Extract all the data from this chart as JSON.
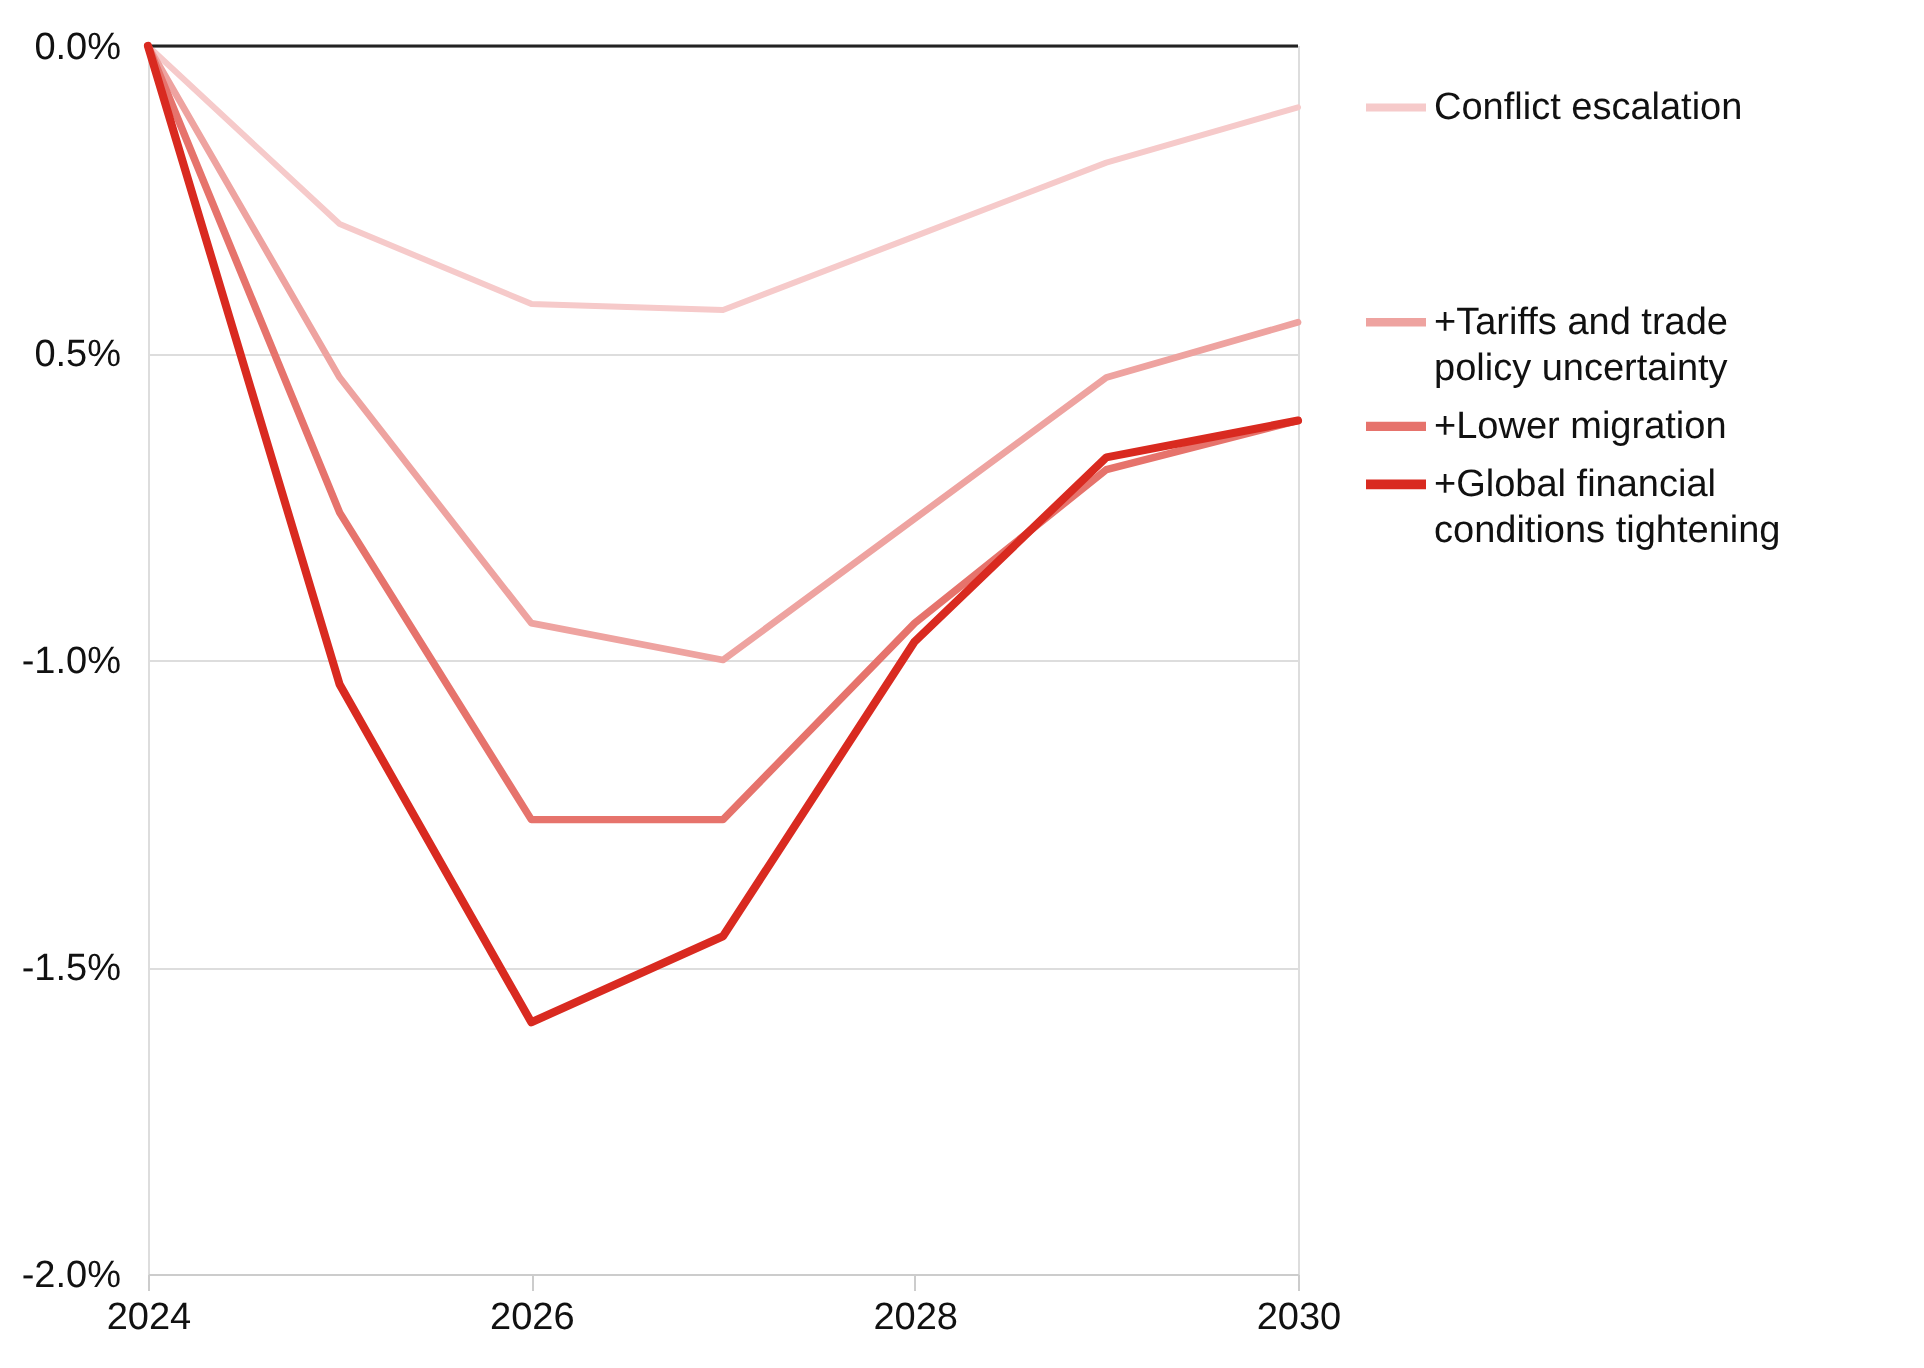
{
  "chart_data": {
    "type": "line",
    "x": [
      2024,
      2025,
      2026,
      2027,
      2028,
      2029,
      2030
    ],
    "series": [
      {
        "name": "Conflict escalation",
        "color": "#f6caca",
        "values": [
          0,
          -0.29,
          -0.42,
          -0.43,
          -0.31,
          -0.19,
          -0.1
        ]
      },
      {
        "name": "+Tariffs and trade policy uncertainty",
        "color": "#eea3a0",
        "values": [
          0,
          -0.54,
          -0.94,
          -1.0,
          -0.77,
          -0.54,
          -0.45
        ]
      },
      {
        "name": "+Lower migration",
        "color": "#e6736c",
        "values": [
          0,
          -0.76,
          -1.26,
          -1.26,
          -0.94,
          -0.69,
          -0.61
        ]
      },
      {
        "name": "+Global financial conditions tightening",
        "color": "#d92a20",
        "values": [
          0,
          -1.04,
          -1.59,
          -1.45,
          -0.97,
          -0.67,
          -0.61
        ]
      }
    ],
    "xlim": [
      2024,
      2030
    ],
    "xticks": [
      2024,
      2026,
      2028,
      2030
    ],
    "ylim": [
      -2.0,
      0.0
    ],
    "yticks": [
      {
        "value": 0,
        "label": "0.0%"
      },
      {
        "value": -0.5,
        "label": "0.5%"
      },
      {
        "value": -1.0,
        "label": "-1.0%"
      },
      {
        "value": -1.5,
        "label": "-1.5%"
      },
      {
        "value": -2.0,
        "label": "-2.0%"
      }
    ],
    "ref_lines": [
      {
        "axis": "y",
        "value": 0,
        "color": "#222222"
      }
    ],
    "grid": "y",
    "legend": "right",
    "marker": "none",
    "line_style": "solid"
  }
}
